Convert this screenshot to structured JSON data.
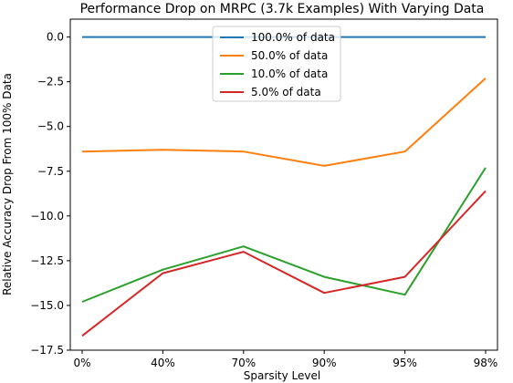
{
  "chart_data": {
    "type": "line",
    "title": "Performance Drop on MRPC (3.7k Examples) With Varying Data",
    "xlabel": "Sparsity Level",
    "ylabel": "Relative Accuracy Drop From 100% Data",
    "categories": [
      "0%",
      "40%",
      "70%",
      "90%",
      "95%",
      "98%"
    ],
    "ylim": [
      -17.5,
      1.0
    ],
    "yticks": [
      0.0,
      -2.5,
      -5.0,
      -7.5,
      -10.0,
      -12.5,
      -15.0,
      -17.5
    ],
    "ytick_labels": [
      "0.0",
      "−2.5",
      "−5.0",
      "−7.5",
      "−10.0",
      "−12.5",
      "−15.0",
      "−17.5"
    ],
    "grid": false,
    "legend_position": "top-center",
    "series": [
      {
        "name": "100.0% of data",
        "color": "#1f77b4",
        "values": [
          0.0,
          0.0,
          0.0,
          0.0,
          0.0,
          0.0
        ]
      },
      {
        "name": "50.0% of data",
        "color": "#ff7f0e",
        "values": [
          -6.4,
          -6.3,
          -6.4,
          -7.2,
          -6.4,
          -2.3
        ]
      },
      {
        "name": "10.0% of data",
        "color": "#2ca02c",
        "values": [
          -14.8,
          -13.0,
          -11.7,
          -13.4,
          -14.4,
          -7.3
        ]
      },
      {
        "name": "5.0% of data",
        "color": "#d62728",
        "values": [
          -16.7,
          -13.2,
          -12.0,
          -14.3,
          -13.4,
          -8.6
        ]
      }
    ]
  }
}
